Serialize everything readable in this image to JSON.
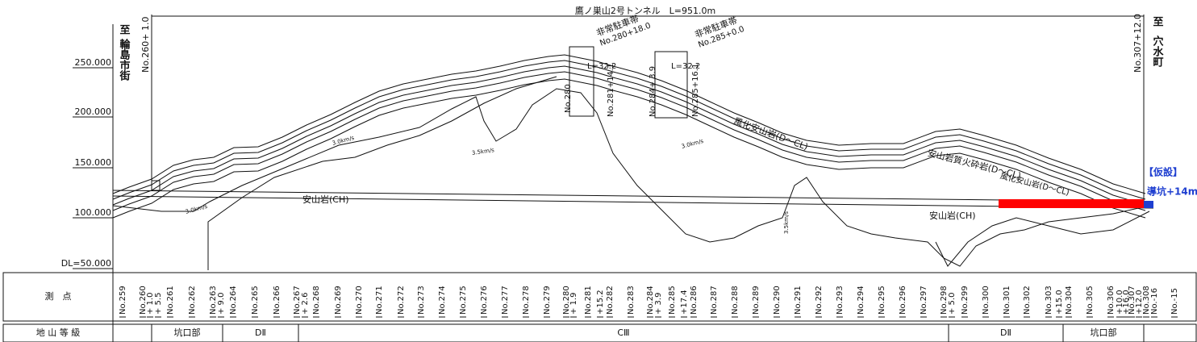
{
  "title": "鷹ノ巣山2号トンネル　L=951.0m",
  "start": {
    "to": "至",
    "place": "輪島市街",
    "station": "No.260+ 1.0"
  },
  "end": {
    "to": "至",
    "place": "穴水町",
    "station": "No.307+12.0"
  },
  "elevations": [
    "250.000",
    "200.000",
    "150.000",
    "100.000",
    "DL=50.000"
  ],
  "annotations": [
    "非常駐車帯",
    "No.280+18.0",
    "非常駐車帯",
    "No.285+0.0",
    "L=32.2",
    "L=32.2",
    "No.280",
    "No.281+14.1",
    "No.284+ 3.9",
    "No.285+16.1",
    "風化安山岩(D～CL)",
    "安山岩質火砕岩(D～CL)",
    "風化安山岩(D～CL)",
    "安山岩(CH)",
    "安山岩(CH)",
    "3.0km/s",
    "3.5km/s",
    "3.0km/s",
    "3.0km/s",
    "3.5km/s",
    "【仮設】",
    "導坑+14m"
  ],
  "table": {
    "station_header": "測　点",
    "stations": [
      "No.259",
      "No.260",
      "+ 1.0",
      "+ 5.5",
      "No.261",
      "No.262",
      "No.263",
      "+ 9.0",
      "No.264",
      "No.265",
      "No.266",
      "No.267",
      "+ 2.6",
      "No.268",
      "No.269",
      "No.270",
      "No.271",
      "No.272",
      "No.273",
      "No.274",
      "No.275",
      "No.276",
      "No.277",
      "No.278",
      "No.279",
      "No.280",
      "+ 1.9",
      "No.281",
      "+15.2",
      "No.282",
      "No.283",
      "No.284",
      "+ 3.9",
      "No.285",
      "+17.4",
      "No.286",
      "No.287",
      "No.288",
      "No.289",
      "No.290",
      "No.291",
      "No.292",
      "No.293",
      "No.294",
      "No.295",
      "No.296",
      "No.297",
      "No.298",
      "+ 5.0",
      "No.299",
      "No.300",
      "No.301",
      "No.302",
      "No.303",
      "+15.0",
      "No.304",
      "No.305",
      "No.306",
      "+10.0",
      "+16.0",
      "No.307",
      "+12.0",
      "No.308",
      "No.-16",
      "No.-15"
    ],
    "class_header": "地 山 等 級",
    "classes": [
      "坑口部",
      "DⅡ",
      "CⅢ",
      "DⅡ",
      "坑口部"
    ]
  }
}
